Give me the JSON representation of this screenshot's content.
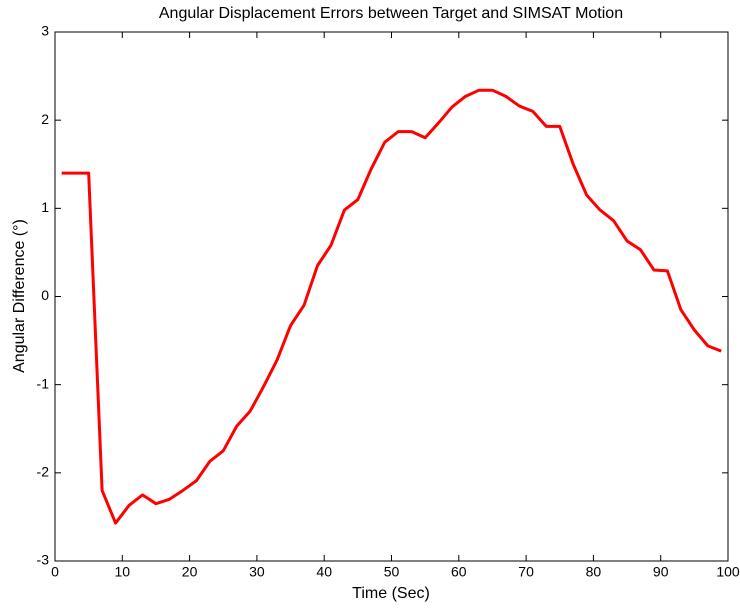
{
  "chart_data": {
    "type": "line",
    "title": "Angular Displacement Errors between Target and SIMSAT Motion",
    "xlabel": "Time (Sec)",
    "ylabel": "Angular Difference (°)",
    "x": [
      1,
      3,
      5,
      7,
      9,
      11,
      13,
      15,
      17,
      19,
      21,
      23,
      25,
      27,
      29,
      31,
      33,
      35,
      37,
      39,
      41,
      43,
      45,
      47,
      49,
      51,
      53,
      55,
      57,
      59,
      61,
      63,
      65,
      67,
      69,
      71,
      73,
      75,
      77,
      79,
      81,
      83,
      85,
      87,
      89,
      91,
      93,
      95,
      97,
      99
    ],
    "series": [
      {
        "color": "#ff0000",
        "values": [
          1.4,
          1.4,
          1.4,
          -2.2,
          -2.57,
          -2.37,
          -2.25,
          -2.35,
          -2.3,
          -2.2,
          -2.09,
          -1.87,
          -1.75,
          -1.47,
          -1.3,
          -1.02,
          -0.72,
          -0.33,
          -0.1,
          0.35,
          0.58,
          0.98,
          1.1,
          1.45,
          1.75,
          1.87,
          1.87,
          1.8,
          1.97,
          2.15,
          2.27,
          2.34,
          2.34,
          2.27,
          2.16,
          2.1,
          1.93,
          1.93,
          1.5,
          1.15,
          0.98,
          0.86,
          0.63,
          0.53,
          0.3,
          0.29,
          -0.15,
          -0.38,
          -0.56,
          -0.62
        ]
      }
    ],
    "xlim": [
      0,
      100
    ],
    "xticks": [
      0,
      10,
      20,
      30,
      40,
      50,
      60,
      70,
      80,
      90,
      100
    ],
    "ylim": [
      -3,
      3
    ],
    "yticks": [
      -3,
      -2,
      -1,
      0,
      1,
      2,
      3
    ]
  }
}
